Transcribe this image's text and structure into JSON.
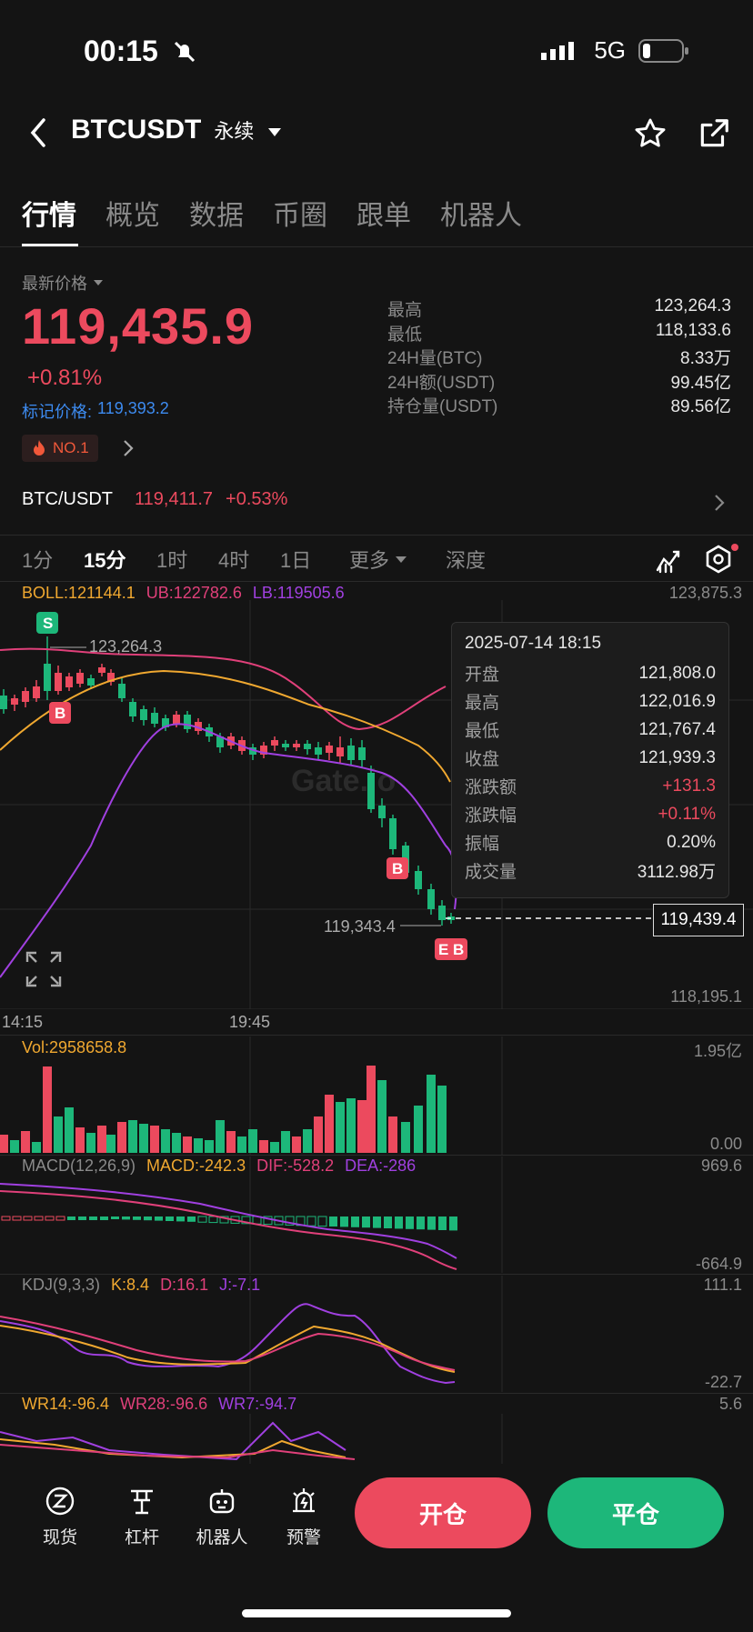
{
  "status_bar": {
    "time": "00:15",
    "network": "5G"
  },
  "nav": {
    "symbol": "BTCUSDT",
    "contract": "永续"
  },
  "tabs": [
    "行情",
    "概览",
    "数据",
    "币圈",
    "跟单",
    "机器人"
  ],
  "price": {
    "label": "最新价格",
    "last": "119,435.9",
    "change": "+0.81%",
    "mark_label": "标记价格:",
    "mark_value": "119,393.2",
    "rank": "NO.1"
  },
  "stats": [
    {
      "k": "最高",
      "v": "123,264.3"
    },
    {
      "k": "最低",
      "v": "118,133.6"
    },
    {
      "k": "24H量(BTC)",
      "v": "8.33万"
    },
    {
      "k": "24H额(USDT)",
      "v": "99.45亿"
    },
    {
      "k": "持仓量(USDT)",
      "v": "89.56亿"
    }
  ],
  "spot": {
    "pair": "BTC/USDT",
    "price": "119,411.7",
    "change": "+0.53%"
  },
  "interval_tabs": [
    "1分",
    "15分",
    "1时",
    "4时",
    "1日",
    "更多",
    "深度"
  ],
  "boll": {
    "boll": "BOLL:121144.1",
    "ub": "UB:122782.6",
    "lb": "LB:119505.6"
  },
  "main_axis": {
    "top": "123,875.3",
    "bottom": "118,195.1",
    "current": "119,439.4"
  },
  "marks": {
    "high": "123,264.3",
    "low": "119,343.4"
  },
  "x_labels": [
    "14:15",
    "19:45"
  ],
  "tooltip": {
    "date": "2025-07-14 18:15",
    "rows": [
      {
        "k": "开盘",
        "v": "121,808.0"
      },
      {
        "k": "最高",
        "v": "122,016.9"
      },
      {
        "k": "最低",
        "v": "121,767.4"
      },
      {
        "k": "收盘",
        "v": "121,939.3"
      },
      {
        "k": "涨跌额",
        "v": "+131.3"
      },
      {
        "k": "涨跌幅",
        "v": "+0.11%"
      },
      {
        "k": "振幅",
        "v": "0.20%"
      },
      {
        "k": "成交量",
        "v": "3112.98万"
      }
    ]
  },
  "vol": {
    "label": "Vol:2958658.8",
    "top": "1.95亿",
    "bottom": "0.00"
  },
  "macd": {
    "title": "MACD(12,26,9)",
    "macd": "MACD:-242.3",
    "dif": "DIF:-528.2",
    "dea": "DEA:-286",
    "top": "969.6",
    "bottom": "-664.9"
  },
  "kdj": {
    "title": "KDJ(9,3,3)",
    "k": "K:8.4",
    "d": "D:16.1",
    "j": "J:-7.1",
    "top": "111.1",
    "bottom": "-22.7"
  },
  "wr": {
    "wr14": "WR14:-96.4",
    "wr28": "WR28:-96.6",
    "wr7": "WR7:-94.7",
    "top": "5.6"
  },
  "bottom_nav": [
    "现货",
    "杠杆",
    "机器人",
    "预警"
  ],
  "actions": {
    "open": "开仓",
    "close": "平仓"
  },
  "colors": {
    "up": "#ec4a5e",
    "down": "#1db77a",
    "ub": "#e0407a",
    "mid": "#f0a830",
    "lb": "#a040e0",
    "accent_blue": "#3d8bf0"
  }
}
